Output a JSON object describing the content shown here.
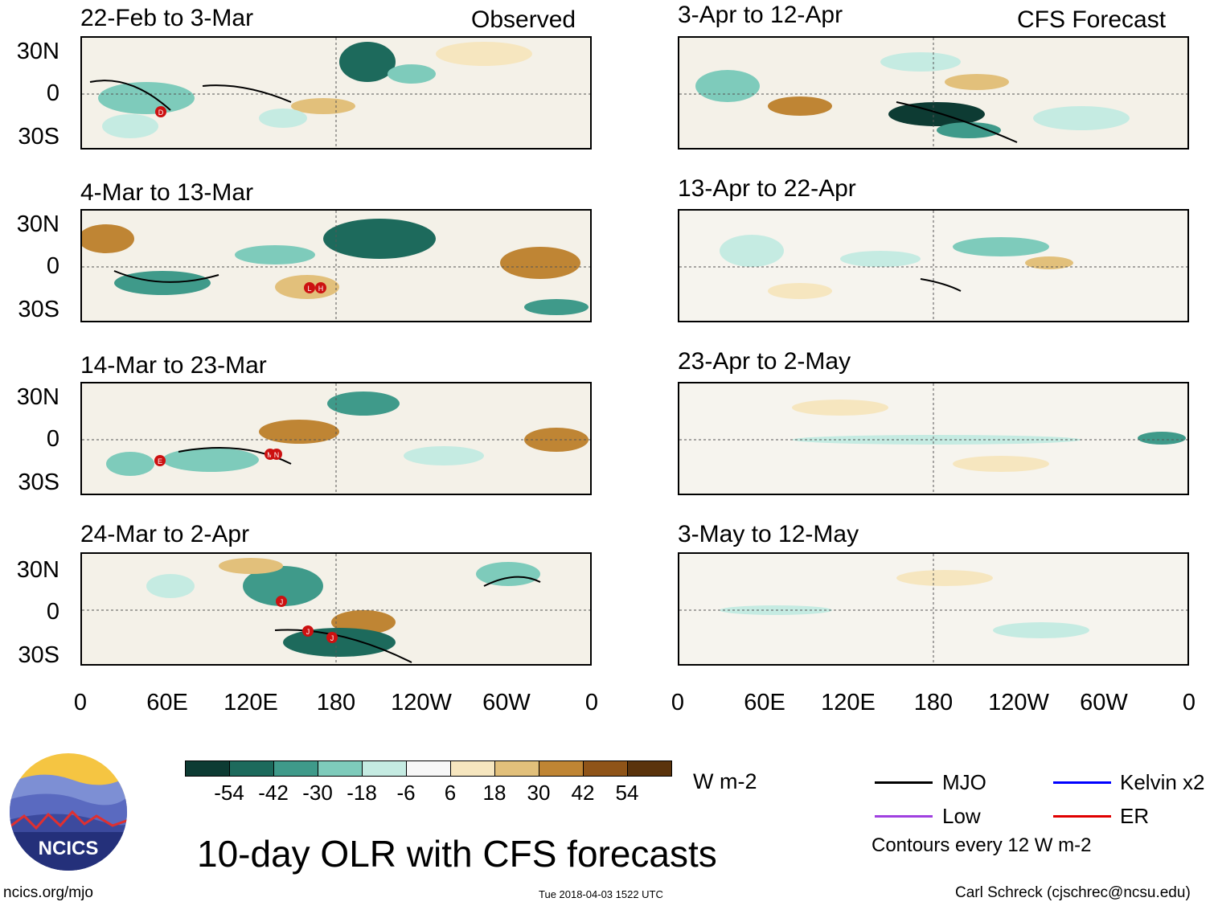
{
  "panels_observed": [
    {
      "title": "22-Feb to 3-Mar",
      "header": "Observed"
    },
    {
      "title": "4-Mar to 13-Mar",
      "header": ""
    },
    {
      "title": "14-Mar to 23-Mar",
      "header": ""
    },
    {
      "title": "24-Mar to 2-Apr",
      "header": ""
    }
  ],
  "panels_forecast": [
    {
      "title": "3-Apr to 12-Apr",
      "header": "CFS Forecast"
    },
    {
      "title": "13-Apr to 22-Apr",
      "header": ""
    },
    {
      "title": "23-Apr to 2-May",
      "header": ""
    },
    {
      "title": "3-May to 12-May",
      "header": ""
    }
  ],
  "lat_labels": [
    "30N",
    "0",
    "30S"
  ],
  "lon_labels": [
    "0",
    "60E",
    "120E",
    "180",
    "120W",
    "60W",
    "0"
  ],
  "colorbar": {
    "units": "W m-2",
    "labels": [
      "-54",
      "-42",
      "-30",
      "-18",
      "-6",
      "6",
      "18",
      "30",
      "42",
      "54"
    ],
    "colors": [
      "#0d3b33",
      "#1d6a5c",
      "#3f9a8a",
      "#7ecbbb",
      "#c5ebe2",
      "#f7f7f7",
      "#f6e6bf",
      "#e2c07b",
      "#bf8534",
      "#8f5418",
      "#5a330c"
    ]
  },
  "legend": [
    {
      "label": "MJO",
      "color": "#000000"
    },
    {
      "label": "Kelvin x2",
      "color": "#0000ff"
    },
    {
      "label": "Low",
      "color": "#a040e0"
    },
    {
      "label": "ER",
      "color": "#e00000"
    }
  ],
  "contour_note": "Contours every 12 W m-2",
  "main_title": "10-day OLR with CFS forecasts",
  "logo_text": "NCICS",
  "footer_left": "ncics.org/mjo",
  "footer_center": "Tue 2018-04-03 1522 UTC",
  "footer_right": "Carl Schreck (cjschrec@ncsu.edu)",
  "storm_markers": [
    {
      "panel": "obs1",
      "label": "D"
    },
    {
      "panel": "obs2",
      "label": "L"
    },
    {
      "panel": "obs2",
      "label": "H"
    },
    {
      "panel": "obs3",
      "label": "E"
    },
    {
      "panel": "obs3",
      "label": "M"
    },
    {
      "panel": "obs3",
      "label": "N"
    },
    {
      "panel": "obs4",
      "label": "J"
    },
    {
      "panel": "obs4",
      "label": "J"
    },
    {
      "panel": "obs4",
      "label": "J"
    }
  ]
}
